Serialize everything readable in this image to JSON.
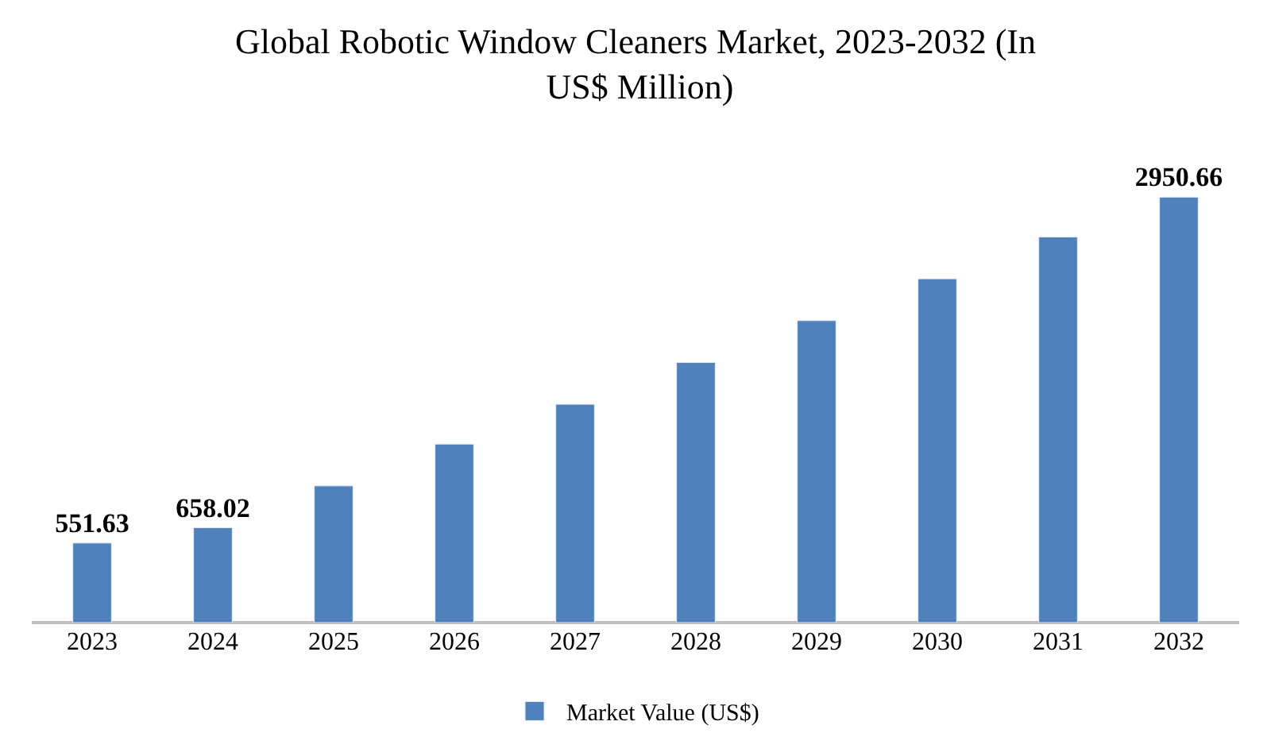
{
  "chart_data": {
    "type": "bar",
    "title": "Global Robotic Window Cleaners Market, 2023-2032 (In US$ Million)",
    "categories": [
      "2023",
      "2024",
      "2025",
      "2026",
      "2027",
      "2028",
      "2029",
      "2030",
      "2031",
      "2032"
    ],
    "series": [
      {
        "name": "Market Value (US$)",
        "color": "#4f81bd",
        "values": [
          551.63,
          658.02,
          948,
          1238,
          1514,
          1804,
          2094,
          2384,
          2674,
          2950.66
        ],
        "value_labels": [
          "551.63",
          "658.02",
          null,
          null,
          null,
          null,
          null,
          null,
          null,
          "2950.66"
        ]
      }
    ],
    "tick_labels": "x",
    "legend": "bottom"
  }
}
